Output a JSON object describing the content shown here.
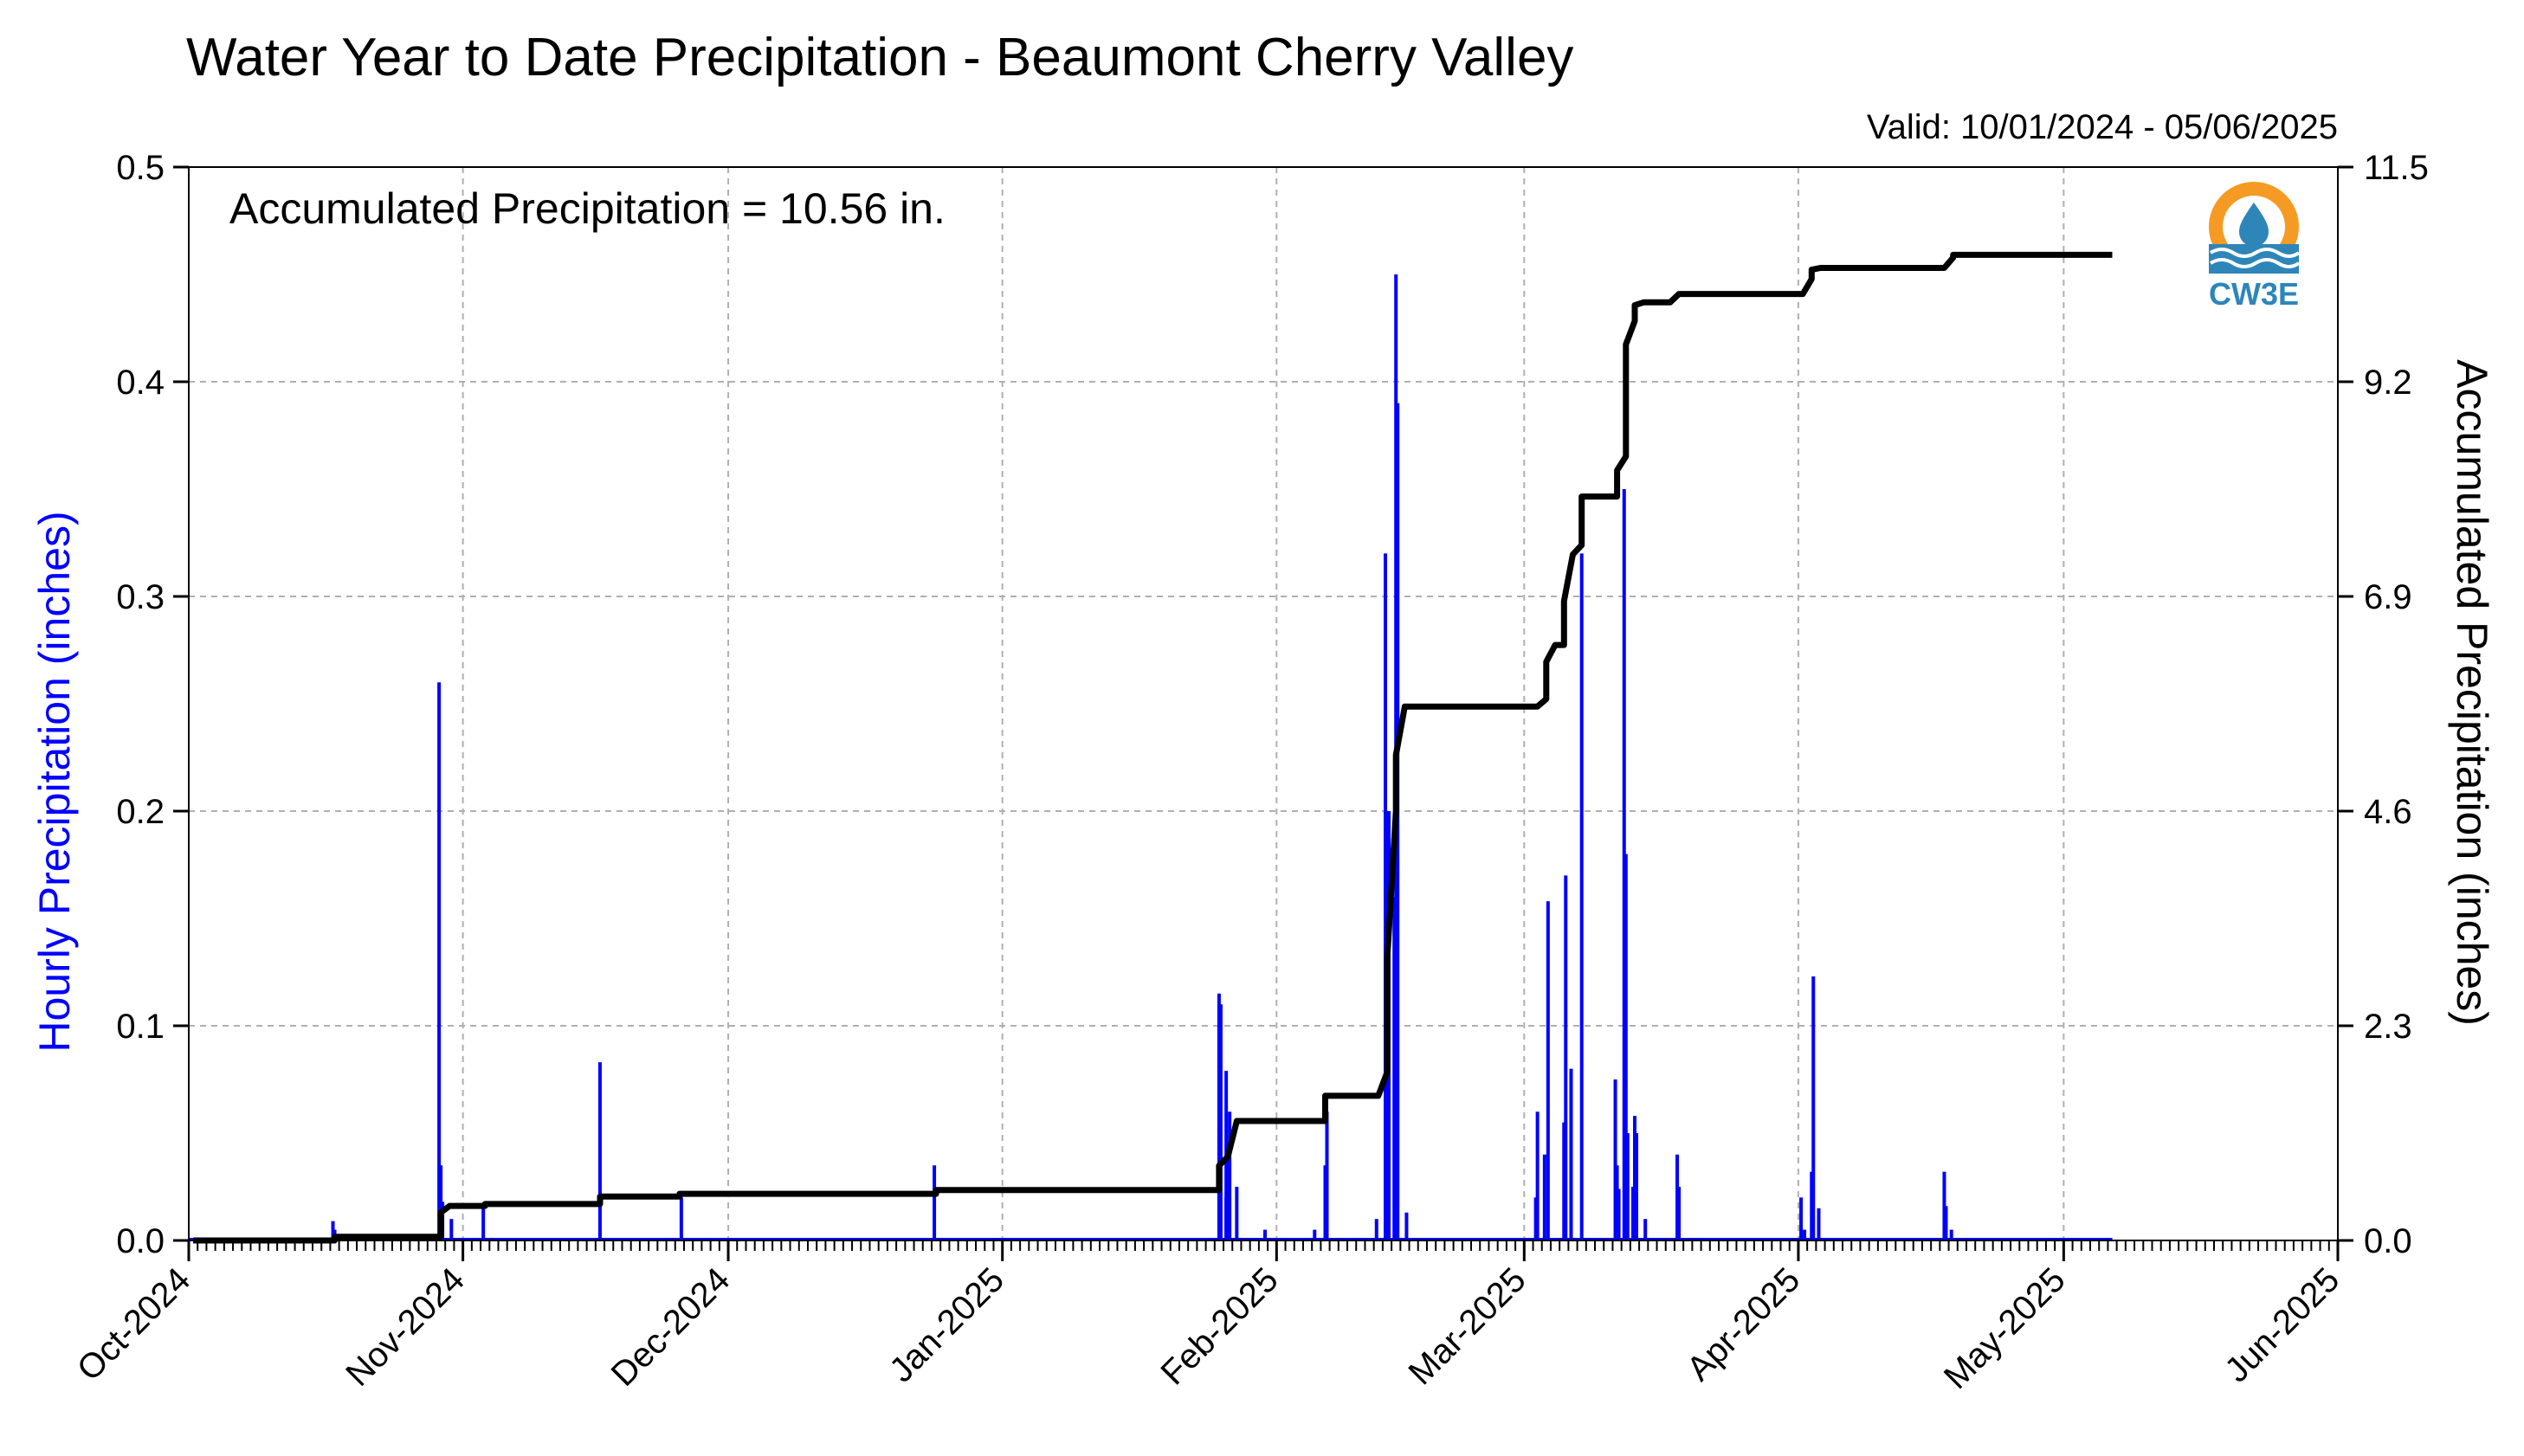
{
  "chart_data": {
    "type": "bar",
    "title": "Water Year to Date Precipitation - Beaumont Cherry Valley",
    "valid_text": "Valid: 10/01/2024 - 05/06/2025",
    "annotation": "Accumulated Precipitation = 10.56 in.",
    "ylabel_left": "Hourly Precipitation (inches)",
    "ylabel_right": "Accumulated Precipitation (inches)",
    "x_range": [
      "2024-10-01",
      "2025-06-01"
    ],
    "ylim_left": [
      0,
      0.5
    ],
    "ylim_right": [
      0,
      11.5
    ],
    "x_tick_labels": [
      "Oct-2024",
      "Nov-2024",
      "Dec-2024",
      "Jan-2025",
      "Feb-2025",
      "Mar-2025",
      "Apr-2025",
      "May-2025",
      "Jun-2025"
    ],
    "x_tick_dates": [
      "2024-10-01",
      "2024-11-01",
      "2024-12-01",
      "2025-01-01",
      "2025-02-01",
      "2025-03-01",
      "2025-04-01",
      "2025-05-01",
      "2025-06-01"
    ],
    "y_ticks_left": [
      "0.0",
      "0.1",
      "0.2",
      "0.3",
      "0.4",
      "0.5"
    ],
    "y_ticks_right": [
      "0.0",
      "2.3",
      "4.6",
      "6.9",
      "9.2",
      "11.5"
    ],
    "grid": true,
    "series": [
      {
        "name": "Hourly Precipitation",
        "kind": "bars",
        "color": "#0000ff",
        "points": [
          [
            "2024-10-17",
            0.009
          ],
          [
            "2024-10-17",
            0.005
          ],
          [
            "2024-10-29",
            0.018
          ],
          [
            "2024-10-29",
            0.26
          ],
          [
            "2024-10-29",
            0.035
          ],
          [
            "2024-10-30",
            0.01
          ],
          [
            "2024-11-03",
            0.015
          ],
          [
            "2024-11-16",
            0.083
          ],
          [
            "2024-11-25",
            0.02
          ],
          [
            "2024-12-24",
            0.035
          ],
          [
            "2025-01-25",
            0.115
          ],
          [
            "2025-01-25",
            0.11
          ],
          [
            "2025-01-26",
            0.02
          ],
          [
            "2025-01-26",
            0.04
          ],
          [
            "2025-01-26",
            0.06
          ],
          [
            "2025-01-26",
            0.079
          ],
          [
            "2025-01-27",
            0.025
          ],
          [
            "2025-01-30",
            0.005
          ],
          [
            "2025-02-05",
            0.005
          ],
          [
            "2025-02-06",
            0.035
          ],
          [
            "2025-02-06",
            0.06
          ],
          [
            "2025-02-12",
            0.01
          ],
          [
            "2025-02-13",
            0.06
          ],
          [
            "2025-02-13",
            0.2
          ],
          [
            "2025-02-13",
            0.32
          ],
          [
            "2025-02-14",
            0.45
          ],
          [
            "2025-02-14",
            0.39
          ],
          [
            "2025-02-14",
            0.16
          ],
          [
            "2025-02-14",
            0.05
          ],
          [
            "2025-02-15",
            0.013
          ],
          [
            "2025-03-02",
            0.02
          ],
          [
            "2025-03-02",
            0.06
          ],
          [
            "2025-03-03",
            0.158
          ],
          [
            "2025-03-03",
            0.04
          ],
          [
            "2025-03-05",
            0.055
          ],
          [
            "2025-03-05",
            0.17
          ],
          [
            "2025-03-06",
            0.08
          ],
          [
            "2025-03-07",
            0.32
          ],
          [
            "2025-03-11",
            0.024
          ],
          [
            "2025-03-11",
            0.075
          ],
          [
            "2025-03-11",
            0.035
          ],
          [
            "2025-03-12",
            0.05
          ],
          [
            "2025-03-12",
            0.35
          ],
          [
            "2025-03-12",
            0.18
          ],
          [
            "2025-03-13",
            0.05
          ],
          [
            "2025-03-13",
            0.025
          ],
          [
            "2025-03-13",
            0.058
          ],
          [
            "2025-03-14",
            0.01
          ],
          [
            "2025-03-18",
            0.04
          ],
          [
            "2025-03-18",
            0.025
          ],
          [
            "2025-04-01",
            0.005
          ],
          [
            "2025-04-01",
            0.02
          ],
          [
            "2025-04-02",
            0.032
          ],
          [
            "2025-04-02",
            0.123
          ],
          [
            "2025-04-03",
            0.015
          ],
          [
            "2025-04-17",
            0.032
          ],
          [
            "2025-04-17",
            0.016
          ],
          [
            "2025-04-18",
            0.005
          ]
        ]
      },
      {
        "name": "Accumulated Precipitation",
        "kind": "line",
        "color": "#000000",
        "points": [
          [
            "2024-10-01",
            0.0
          ],
          [
            "2024-10-17",
            0.0
          ],
          [
            "2024-10-17",
            0.04
          ],
          [
            "2024-10-29",
            0.04
          ],
          [
            "2024-10-29",
            0.3
          ],
          [
            "2024-10-30",
            0.37
          ],
          [
            "2024-11-03",
            0.37
          ],
          [
            "2024-11-03",
            0.39
          ],
          [
            "2024-11-16",
            0.39
          ],
          [
            "2024-11-16",
            0.47
          ],
          [
            "2024-11-25",
            0.47
          ],
          [
            "2024-11-25",
            0.5
          ],
          [
            "2024-12-24",
            0.5
          ],
          [
            "2024-12-24",
            0.54
          ],
          [
            "2025-01-25",
            0.54
          ],
          [
            "2025-01-25",
            0.8
          ],
          [
            "2025-01-26",
            0.9
          ],
          [
            "2025-01-27",
            1.28
          ],
          [
            "2025-02-06",
            1.28
          ],
          [
            "2025-02-06",
            1.42
          ],
          [
            "2025-02-06",
            1.55
          ],
          [
            "2025-02-12",
            1.55
          ],
          [
            "2025-02-13",
            1.8
          ],
          [
            "2025-02-13",
            3.0
          ],
          [
            "2025-02-14",
            4.6
          ],
          [
            "2025-02-14",
            5.2
          ],
          [
            "2025-02-15",
            5.72
          ],
          [
            "2025-03-02",
            5.72
          ],
          [
            "2025-03-03",
            5.8
          ],
          [
            "2025-03-03",
            6.2
          ],
          [
            "2025-03-04",
            6.38
          ],
          [
            "2025-03-05",
            6.38
          ],
          [
            "2025-03-05",
            6.85
          ],
          [
            "2025-03-06",
            7.35
          ],
          [
            "2025-03-07",
            7.45
          ],
          [
            "2025-03-07",
            7.97
          ],
          [
            "2025-03-11",
            7.97
          ],
          [
            "2025-03-11",
            8.25
          ],
          [
            "2025-03-12",
            8.4
          ],
          [
            "2025-03-12",
            9.0
          ],
          [
            "2025-03-12",
            9.6
          ],
          [
            "2025-03-13",
            9.85
          ],
          [
            "2025-03-13",
            10.02
          ],
          [
            "2025-03-14",
            10.05
          ],
          [
            "2025-03-17",
            10.05
          ],
          [
            "2025-03-18",
            10.14
          ],
          [
            "2025-04-01",
            10.14
          ],
          [
            "2025-04-02",
            10.3
          ],
          [
            "2025-04-02",
            10.4
          ],
          [
            "2025-04-03",
            10.42
          ],
          [
            "2025-04-17",
            10.42
          ],
          [
            "2025-04-18",
            10.53
          ],
          [
            "2025-04-18",
            10.56
          ],
          [
            "2025-05-06",
            10.56
          ]
        ]
      }
    ]
  },
  "logo": {
    "text": "CW3E",
    "colors": {
      "orange": "#f59a23",
      "blue": "#2e86b8"
    }
  }
}
